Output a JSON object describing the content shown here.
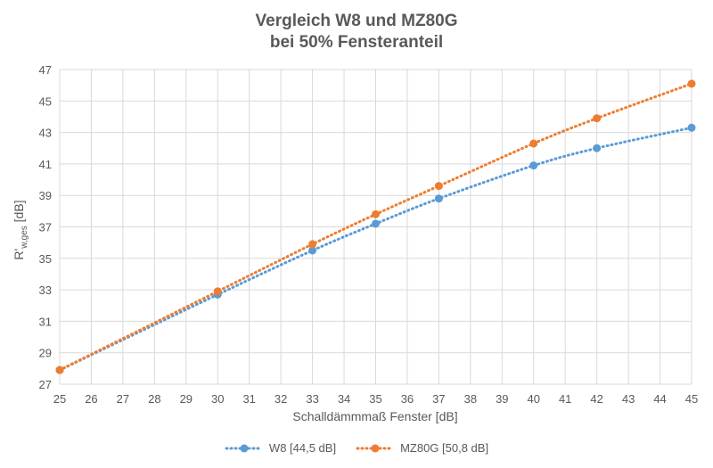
{
  "chart_data": {
    "type": "line",
    "title": [
      "Vergleich W8 und MZ80G",
      "bei 50% Fensteranteil"
    ],
    "xlabel": "Schalldämmmaß Fenster [dB]",
    "ylabel": "R'",
    "ylabel_sub": "w,ges",
    "ylabel_unit": " [dB]",
    "xlim": [
      25,
      45
    ],
    "ylim": [
      27,
      47
    ],
    "x_ticks": [
      25,
      26,
      27,
      28,
      29,
      30,
      31,
      32,
      33,
      34,
      35,
      36,
      37,
      38,
      39,
      40,
      41,
      42,
      43,
      44,
      45
    ],
    "y_ticks": [
      27,
      29,
      31,
      33,
      35,
      37,
      39,
      41,
      43,
      45,
      47
    ],
    "grid": true,
    "legend_position": "bottom",
    "series": [
      {
        "name": "W8 [44,5 dB]",
        "color": "#5b9bd5",
        "x": [
          25,
          30,
          33,
          35,
          37,
          40,
          42,
          45
        ],
        "y": [
          27.9,
          32.7,
          35.5,
          37.2,
          38.8,
          40.9,
          42.0,
          43.3
        ]
      },
      {
        "name": "MZ80G [50,8 dB]",
        "color": "#ed7d31",
        "x": [
          25,
          30,
          33,
          35,
          37,
          40,
          42,
          45
        ],
        "y": [
          27.9,
          32.9,
          35.9,
          37.8,
          39.6,
          42.3,
          43.9,
          46.1
        ]
      }
    ]
  }
}
